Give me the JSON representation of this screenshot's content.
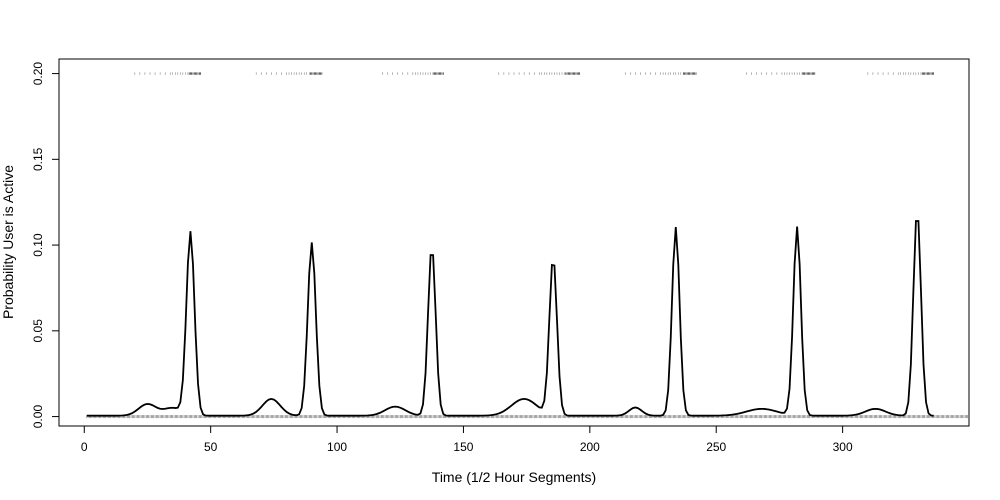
{
  "chart_data": {
    "type": "line",
    "xlabel": "Time (1/2 Hour Segments)",
    "ylabel": "Probability User is Active",
    "xlim": [
      -10,
      350
    ],
    "ylim": [
      -0.0055,
      0.2085
    ],
    "x_ticks": [
      0,
      50,
      100,
      150,
      200,
      250,
      300
    ],
    "y_ticks": [
      0.0,
      0.05,
      0.1,
      0.15,
      0.2
    ],
    "y_tick_labels": [
      "0.00",
      "0.05",
      "0.10",
      "0.15",
      "0.20"
    ],
    "grid": false,
    "legend": "none",
    "line_color": "#000000",
    "x_range": [
      1,
      336
    ],
    "baseline": 0.0005,
    "peaks": [
      {
        "center": 42,
        "height": 0.107,
        "width": 1.6
      },
      {
        "center": 90,
        "height": 0.101,
        "width": 1.6
      },
      {
        "center": 137.5,
        "height": 0.099,
        "width": 1.5
      },
      {
        "center": 185.5,
        "height": 0.092,
        "width": 1.5
      },
      {
        "center": 234,
        "height": 0.11,
        "width": 1.5
      },
      {
        "center": 282,
        "height": 0.11,
        "width": 1.5
      },
      {
        "center": 329.5,
        "height": 0.12,
        "width": 1.5
      }
    ],
    "bumps": [
      {
        "center": 25,
        "height": 0.0068,
        "width": 3.5
      },
      {
        "center": 35,
        "height": 0.0045,
        "width": 3.5
      },
      {
        "center": 74,
        "height": 0.0098,
        "width": 3.5
      },
      {
        "center": 123,
        "height": 0.0053,
        "width": 4
      },
      {
        "center": 174,
        "height": 0.0098,
        "width": 5
      },
      {
        "center": 218,
        "height": 0.0048,
        "width": 2.5
      },
      {
        "center": 268,
        "height": 0.004,
        "width": 6
      },
      {
        "center": 313,
        "height": 0.004,
        "width": 4
      }
    ],
    "rug_high_y": 0.2,
    "rug_low_y": 0.0,
    "rug_high_clusters": [
      {
        "range": [
          20,
          46
        ],
        "density": "dense-end"
      },
      {
        "range": [
          67,
          94
        ],
        "density": "dense-end"
      },
      {
        "range": [
          117,
          142
        ],
        "density": "dense-end"
      },
      {
        "range": [
          164,
          196
        ],
        "density": "dense-end"
      },
      {
        "range": [
          213,
          242
        ],
        "density": "dense-end"
      },
      {
        "range": [
          261,
          289
        ],
        "density": "dense-end"
      },
      {
        "range": [
          309,
          336
        ],
        "density": "dense-end"
      }
    ]
  }
}
